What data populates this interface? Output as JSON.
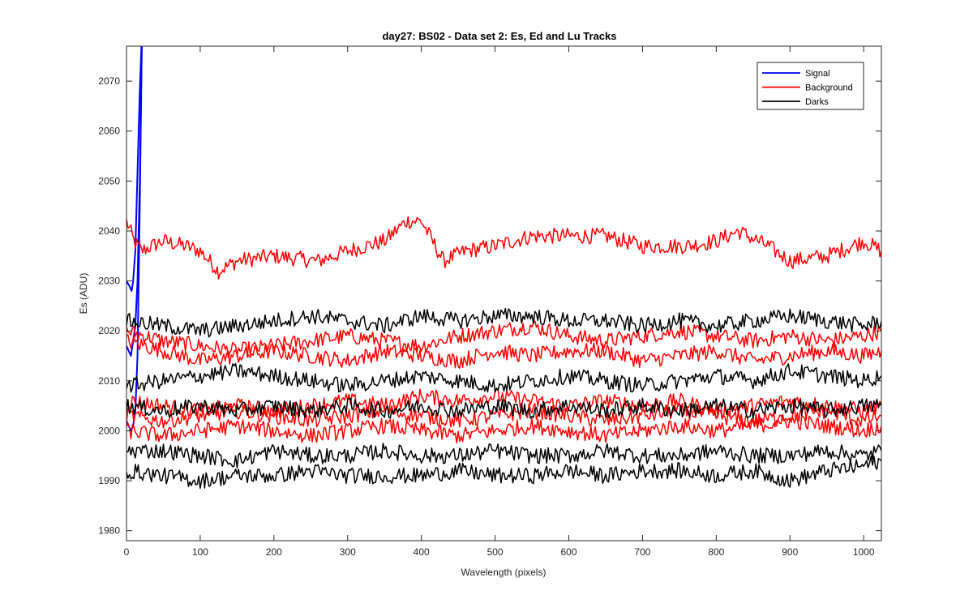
{
  "chart_data": {
    "type": "line",
    "title": "day27: BS02 - Data set 2: Es, Ed and Lu Tracks",
    "xlabel": "Wavelength (pixels)",
    "ylabel": "Es (ADU)",
    "xlim": [
      0,
      1024
    ],
    "ylim": [
      1978,
      2077
    ],
    "xticks": [
      0,
      100,
      200,
      300,
      400,
      500,
      600,
      700,
      800,
      900,
      1000
    ],
    "yticks": [
      1980,
      1990,
      2000,
      2010,
      2020,
      2030,
      2040,
      2050,
      2060,
      2070
    ],
    "grid": false,
    "legend": {
      "position": "top-right",
      "entries": [
        {
          "name": "Signal",
          "color": "#0000ff"
        },
        {
          "name": "Background",
          "color": "#ff0000"
        },
        {
          "name": "Darks",
          "color": "#000000"
        }
      ]
    },
    "series": [
      {
        "name": "Signal",
        "color": "#0000ff",
        "points": [
          [
            0,
            2030
          ],
          [
            4,
            2029
          ],
          [
            7,
            2028
          ],
          [
            9,
            2030
          ],
          [
            12,
            2036
          ],
          [
            15,
            2052
          ],
          [
            18,
            2068
          ],
          [
            21,
            2080
          ]
        ]
      },
      {
        "name": "Signal",
        "color": "#0000ff",
        "points": [
          [
            0,
            2017
          ],
          [
            3,
            2016
          ],
          [
            6,
            2015
          ],
          [
            9,
            2018
          ],
          [
            12,
            2021
          ],
          [
            15,
            2030
          ],
          [
            18,
            2050
          ],
          [
            21,
            2080
          ]
        ]
      },
      {
        "name": "Signal",
        "color": "#0000ff",
        "points": [
          [
            0,
            2002
          ],
          [
            3,
            2001
          ],
          [
            6,
            2000
          ],
          [
            9,
            2001
          ],
          [
            12,
            2004
          ],
          [
            15,
            2015
          ],
          [
            18,
            2045
          ],
          [
            21,
            2080
          ]
        ]
      },
      {
        "name": "Background",
        "color": "#ff0000",
        "points": [
          [
            0,
            2042
          ],
          [
            10,
            2038
          ],
          [
            20,
            2036
          ],
          [
            50,
            2038
          ],
          [
            80,
            2037
          ],
          [
            100,
            2036
          ],
          [
            125,
            2032
          ],
          [
            150,
            2034
          ],
          [
            200,
            2035
          ],
          [
            260,
            2034
          ],
          [
            300,
            2036
          ],
          [
            350,
            2038
          ],
          [
            380,
            2042
          ],
          [
            400,
            2042
          ],
          [
            430,
            2034
          ],
          [
            460,
            2036
          ],
          [
            500,
            2037
          ],
          [
            550,
            2039
          ],
          [
            600,
            2039
          ],
          [
            650,
            2039
          ],
          [
            700,
            2037
          ],
          [
            760,
            2037
          ],
          [
            800,
            2038
          ],
          [
            830,
            2040
          ],
          [
            870,
            2037
          ],
          [
            900,
            2034
          ],
          [
            950,
            2035
          ],
          [
            1000,
            2038
          ],
          [
            1024,
            2036
          ]
        ]
      },
      {
        "name": "Background",
        "color": "#ff0000",
        "points": [
          [
            0,
            2020
          ],
          [
            50,
            2018
          ],
          [
            100,
            2017
          ],
          [
            150,
            2016
          ],
          [
            200,
            2017
          ],
          [
            250,
            2018
          ],
          [
            300,
            2019
          ],
          [
            350,
            2018
          ],
          [
            400,
            2017
          ],
          [
            450,
            2019
          ],
          [
            500,
            2020
          ],
          [
            550,
            2021
          ],
          [
            600,
            2019
          ],
          [
            650,
            2018
          ],
          [
            700,
            2019
          ],
          [
            750,
            2020
          ],
          [
            800,
            2019
          ],
          [
            850,
            2018
          ],
          [
            900,
            2019
          ],
          [
            950,
            2018
          ],
          [
            1000,
            2019
          ],
          [
            1024,
            2020
          ]
        ]
      },
      {
        "name": "Background",
        "color": "#ff0000",
        "points": [
          [
            0,
            2018
          ],
          [
            50,
            2016
          ],
          [
            100,
            2014
          ],
          [
            150,
            2015
          ],
          [
            200,
            2016
          ],
          [
            250,
            2015
          ],
          [
            300,
            2014
          ],
          [
            350,
            2016
          ],
          [
            400,
            2015
          ],
          [
            450,
            2014
          ],
          [
            500,
            2016
          ],
          [
            550,
            2015
          ],
          [
            600,
            2016
          ],
          [
            650,
            2016
          ],
          [
            700,
            2014
          ],
          [
            750,
            2015
          ],
          [
            800,
            2016
          ],
          [
            850,
            2014
          ],
          [
            900,
            2015
          ],
          [
            950,
            2016
          ],
          [
            1000,
            2015
          ],
          [
            1024,
            2016
          ]
        ]
      },
      {
        "name": "Background",
        "color": "#ff0000",
        "points": [
          [
            0,
            2006
          ],
          [
            50,
            2005
          ],
          [
            100,
            2004
          ],
          [
            150,
            2005
          ],
          [
            200,
            2004
          ],
          [
            250,
            2005
          ],
          [
            300,
            2006
          ],
          [
            350,
            2005
          ],
          [
            400,
            2007
          ],
          [
            450,
            2006
          ],
          [
            500,
            2007
          ],
          [
            550,
            2006
          ],
          [
            600,
            2005
          ],
          [
            650,
            2006
          ],
          [
            700,
            2005
          ],
          [
            750,
            2006
          ],
          [
            800,
            2004
          ],
          [
            850,
            2005
          ],
          [
            900,
            2006
          ],
          [
            950,
            2005
          ],
          [
            1000,
            2004
          ],
          [
            1024,
            2005
          ]
        ]
      },
      {
        "name": "Background",
        "color": "#ff0000",
        "points": [
          [
            0,
            2003
          ],
          [
            50,
            2002
          ],
          [
            100,
            2003
          ],
          [
            150,
            2004
          ],
          [
            200,
            2003
          ],
          [
            250,
            2002
          ],
          [
            300,
            2003
          ],
          [
            350,
            2004
          ],
          [
            400,
            2003
          ],
          [
            450,
            2002
          ],
          [
            500,
            2003
          ],
          [
            550,
            2004
          ],
          [
            600,
            2003
          ],
          [
            650,
            2002
          ],
          [
            700,
            2003
          ],
          [
            750,
            2004
          ],
          [
            800,
            2003
          ],
          [
            850,
            2002
          ],
          [
            900,
            2003
          ],
          [
            950,
            2004
          ],
          [
            1000,
            2002
          ],
          [
            1024,
            2003
          ]
        ]
      },
      {
        "name": "Background",
        "color": "#ff0000",
        "points": [
          [
            0,
            2000
          ],
          [
            50,
            1999
          ],
          [
            100,
            2000
          ],
          [
            150,
            2001
          ],
          [
            200,
            2000
          ],
          [
            250,
            1999
          ],
          [
            300,
            2000
          ],
          [
            350,
            2001
          ],
          [
            400,
            2000
          ],
          [
            450,
            1999
          ],
          [
            500,
            2000
          ],
          [
            550,
            2001
          ],
          [
            600,
            2000
          ],
          [
            650,
            1999
          ],
          [
            700,
            2000
          ],
          [
            750,
            2001
          ],
          [
            800,
            2000
          ],
          [
            850,
            2001
          ],
          [
            900,
            2002
          ],
          [
            950,
            2001
          ],
          [
            1000,
            2000
          ],
          [
            1024,
            2001
          ]
        ]
      },
      {
        "name": "Darks",
        "color": "#000000",
        "points": [
          [
            0,
            2022
          ],
          [
            50,
            2021
          ],
          [
            100,
            2020
          ],
          [
            150,
            2021
          ],
          [
            200,
            2022
          ],
          [
            250,
            2023
          ],
          [
            300,
            2022
          ],
          [
            350,
            2021
          ],
          [
            400,
            2023
          ],
          [
            450,
            2022
          ],
          [
            500,
            2023
          ],
          [
            550,
            2023
          ],
          [
            600,
            2022
          ],
          [
            650,
            2022
          ],
          [
            700,
            2021
          ],
          [
            750,
            2022
          ],
          [
            800,
            2021
          ],
          [
            850,
            2022
          ],
          [
            900,
            2023
          ],
          [
            950,
            2022
          ],
          [
            1000,
            2021
          ],
          [
            1024,
            2022
          ]
        ]
      },
      {
        "name": "Darks",
        "color": "#000000",
        "points": [
          [
            0,
            2009
          ],
          [
            50,
            2010
          ],
          [
            100,
            2011
          ],
          [
            150,
            2012
          ],
          [
            200,
            2011
          ],
          [
            250,
            2010
          ],
          [
            300,
            2009
          ],
          [
            350,
            2010
          ],
          [
            400,
            2011
          ],
          [
            450,
            2010
          ],
          [
            500,
            2009
          ],
          [
            550,
            2010
          ],
          [
            600,
            2011
          ],
          [
            650,
            2010
          ],
          [
            700,
            2009
          ],
          [
            750,
            2010
          ],
          [
            800,
            2011
          ],
          [
            850,
            2010
          ],
          [
            900,
            2012
          ],
          [
            950,
            2011
          ],
          [
            1000,
            2010
          ],
          [
            1024,
            2011
          ]
        ]
      },
      {
        "name": "Darks",
        "color": "#000000",
        "points": [
          [
            0,
            2005
          ],
          [
            50,
            2004
          ],
          [
            100,
            2005
          ],
          [
            150,
            2004
          ],
          [
            200,
            2005
          ],
          [
            250,
            2004
          ],
          [
            300,
            2005
          ],
          [
            350,
            2004
          ],
          [
            400,
            2005
          ],
          [
            450,
            2004
          ],
          [
            500,
            2005
          ],
          [
            550,
            2004
          ],
          [
            600,
            2005
          ],
          [
            650,
            2004
          ],
          [
            700,
            2005
          ],
          [
            750,
            2004
          ],
          [
            800,
            2005
          ],
          [
            850,
            2004
          ],
          [
            900,
            2005
          ],
          [
            950,
            2004
          ],
          [
            1000,
            2005
          ],
          [
            1024,
            2005
          ]
        ]
      },
      {
        "name": "Darks",
        "color": "#000000",
        "points": [
          [
            0,
            1996
          ],
          [
            50,
            1996
          ],
          [
            100,
            1995
          ],
          [
            150,
            1994
          ],
          [
            200,
            1996
          ],
          [
            250,
            1995
          ],
          [
            300,
            1995
          ],
          [
            350,
            1996
          ],
          [
            400,
            1995
          ],
          [
            450,
            1995
          ],
          [
            500,
            1996
          ],
          [
            550,
            1995
          ],
          [
            600,
            1995
          ],
          [
            650,
            1996
          ],
          [
            700,
            1995
          ],
          [
            750,
            1995
          ],
          [
            800,
            1996
          ],
          [
            850,
            1995
          ],
          [
            900,
            1995
          ],
          [
            950,
            1996
          ],
          [
            1000,
            1995
          ],
          [
            1024,
            1996
          ]
        ]
      },
      {
        "name": "Darks",
        "color": "#000000",
        "points": [
          [
            0,
            1992
          ],
          [
            50,
            1991
          ],
          [
            100,
            1990
          ],
          [
            150,
            1991
          ],
          [
            200,
            1991
          ],
          [
            250,
            1992
          ],
          [
            300,
            1991
          ],
          [
            350,
            1991
          ],
          [
            400,
            1991
          ],
          [
            450,
            1992
          ],
          [
            500,
            1991
          ],
          [
            550,
            1991
          ],
          [
            600,
            1992
          ],
          [
            650,
            1991
          ],
          [
            700,
            1992
          ],
          [
            750,
            1992
          ],
          [
            800,
            1991
          ],
          [
            850,
            1992
          ],
          [
            900,
            1990
          ],
          [
            950,
            1992
          ],
          [
            1000,
            1993
          ],
          [
            1024,
            1994
          ]
        ]
      }
    ]
  }
}
